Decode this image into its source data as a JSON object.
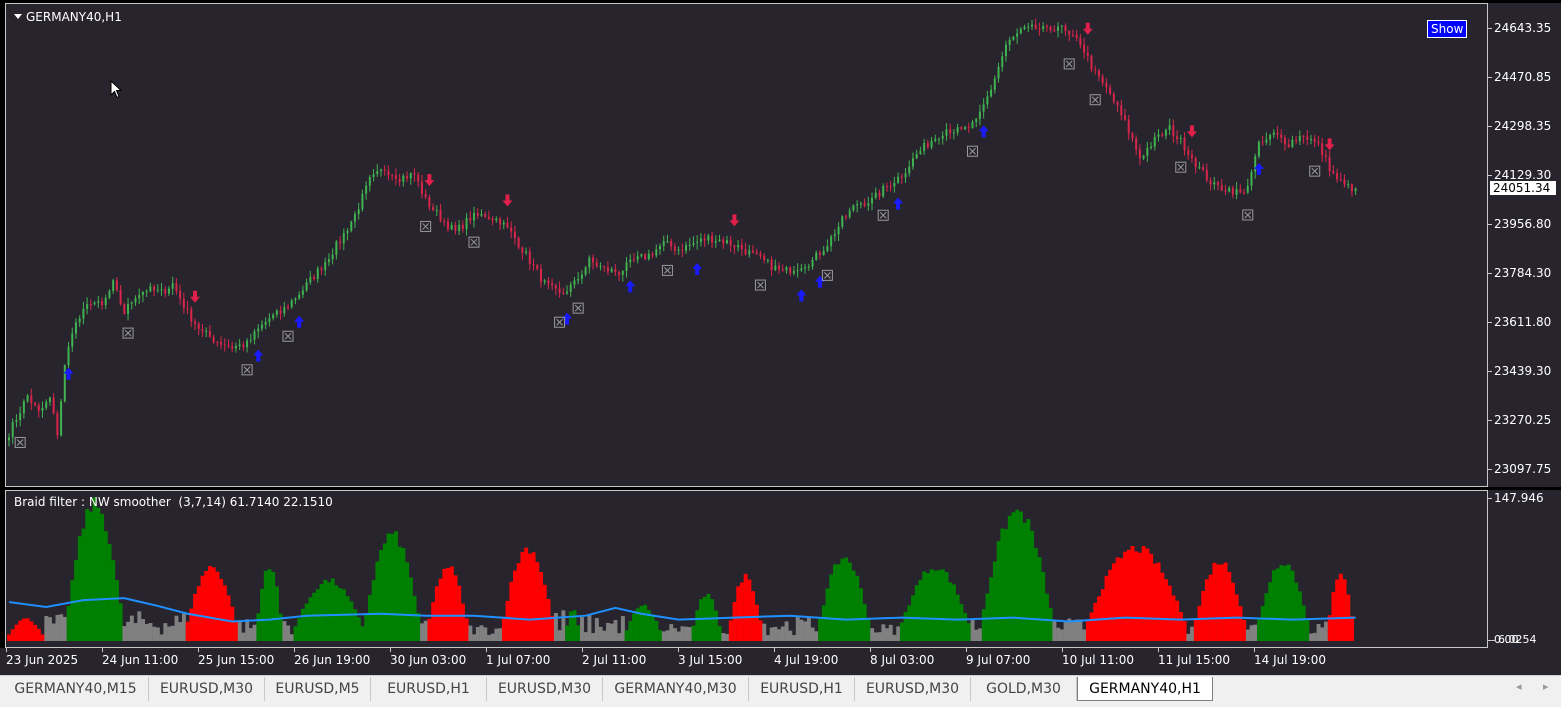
{
  "chart": {
    "symbol_title": "GERMANY40,H1",
    "show_button_label": "Show",
    "current_price": "24051.34",
    "price_ticks": [
      "24643.35",
      "24470.85",
      "24298.35",
      "24129.30",
      "23956.80",
      "23784.30",
      "23611.80",
      "23439.30",
      "23270.25",
      "23097.75"
    ],
    "time_ticks": [
      "23 Jun 2025",
      "24 Jun 11:00",
      "25 Jun 15:00",
      "26 Jun 19:00",
      "30 Jun 03:00",
      "1 Jul 07:00",
      "2 Jul 11:00",
      "3 Jul 15:00",
      "4 Jul 19:00",
      "8 Jul 03:00",
      "9 Jul 07:00",
      "10 Jul 11:00",
      "11 Jul 15:00",
      "14 Jul 19:00"
    ],
    "colors": {
      "background": "#28242e",
      "bull": "#3fb34f",
      "bear": "#d7264a",
      "buy_arrow": "#1a1aff",
      "sell_arrow": "#e0204a",
      "exit_marker": "#9a9a9a"
    }
  },
  "indicator": {
    "label": "Braid filter : NW smoother  (3,7,14) 61.7140 22.1510",
    "scale_max": "147.946",
    "scale_min": "0.00",
    "scale_mid": "6.0254",
    "colors": {
      "up": "#008000",
      "down": "#ff0000",
      "neutral": "#808080",
      "line": "#1e90ff"
    }
  },
  "chart_data": {
    "type": "candlestick",
    "title": "GERMANY40,H1",
    "ylim": [
      23030,
      24680
    ],
    "price_path": [
      [
        0,
        23200
      ],
      [
        5,
        23330
      ],
      [
        8,
        23270
      ],
      [
        11,
        23320
      ],
      [
        13,
        23200
      ],
      [
        15,
        23430
      ],
      [
        17,
        23560
      ],
      [
        22,
        23660
      ],
      [
        25,
        23640
      ],
      [
        28,
        23720
      ],
      [
        31,
        23620
      ],
      [
        34,
        23680
      ],
      [
        37,
        23700
      ],
      [
        41,
        23690
      ],
      [
        44,
        23720
      ],
      [
        48,
        23620
      ],
      [
        52,
        23550
      ],
      [
        56,
        23520
      ],
      [
        60,
        23500
      ],
      [
        64,
        23510
      ],
      [
        67,
        23560
      ],
      [
        70,
        23600
      ],
      [
        73,
        23620
      ],
      [
        76,
        23660
      ],
      [
        79,
        23700
      ],
      [
        84,
        23780
      ],
      [
        89,
        23870
      ],
      [
        93,
        23960
      ],
      [
        97,
        24080
      ],
      [
        101,
        24120
      ],
      [
        105,
        24090
      ],
      [
        109,
        24100
      ],
      [
        112,
        24010
      ],
      [
        116,
        23950
      ],
      [
        120,
        23900
      ],
      [
        124,
        23950
      ],
      [
        128,
        23960
      ],
      [
        132,
        23940
      ],
      [
        136,
        23880
      ],
      [
        140,
        23800
      ],
      [
        144,
        23720
      ],
      [
        148,
        23680
      ],
      [
        152,
        23720
      ],
      [
        156,
        23800
      ],
      [
        160,
        23770
      ],
      [
        164,
        23760
      ],
      [
        168,
        23800
      ],
      [
        172,
        23820
      ],
      [
        176,
        23860
      ],
      [
        180,
        23840
      ],
      [
        184,
        23860
      ],
      [
        188,
        23880
      ],
      [
        192,
        23870
      ],
      [
        196,
        23850
      ],
      [
        200,
        23820
      ],
      [
        204,
        23790
      ],
      [
        208,
        23760
      ],
      [
        212,
        23780
      ],
      [
        216,
        23800
      ],
      [
        220,
        23860
      ],
      [
        224,
        23940
      ],
      [
        228,
        24000
      ],
      [
        232,
        24010
      ],
      [
        236,
        24060
      ],
      [
        240,
        24100
      ],
      [
        244,
        24170
      ],
      [
        248,
        24220
      ],
      [
        252,
        24260
      ],
      [
        256,
        24250
      ],
      [
        260,
        24280
      ],
      [
        264,
        24400
      ],
      [
        268,
        24550
      ],
      [
        272,
        24600
      ],
      [
        276,
        24610
      ],
      [
        279,
        24600
      ],
      [
        282,
        24620
      ],
      [
        285,
        24580
      ],
      [
        288,
        24560
      ],
      [
        292,
        24450
      ],
      [
        296,
        24380
      ],
      [
        300,
        24280
      ],
      [
        304,
        24160
      ],
      [
        308,
        24220
      ],
      [
        312,
        24260
      ],
      [
        316,
        24200
      ],
      [
        320,
        24120
      ],
      [
        324,
        24060
      ],
      [
        328,
        24050
      ],
      [
        332,
        24030
      ],
      [
        336,
        24200
      ],
      [
        340,
        24240
      ],
      [
        344,
        24210
      ],
      [
        348,
        24240
      ],
      [
        352,
        24200
      ],
      [
        356,
        24100
      ],
      [
        359,
        24060
      ],
      [
        362,
        24051.34
      ]
    ],
    "buy_signals": [
      16,
      67,
      78,
      150,
      167,
      185,
      213,
      218,
      239,
      262,
      336
    ],
    "sell_signals": [
      50,
      113,
      134,
      195,
      290,
      318,
      355
    ],
    "exit_markers": [
      3,
      32,
      64,
      75,
      112,
      125,
      148,
      153,
      177,
      202,
      220,
      235,
      259,
      285,
      292,
      315,
      333,
      351
    ],
    "indicator_series": {
      "scale": [
        0,
        147.946
      ],
      "bars": [
        [
          "down",
          0,
          10,
          24
        ],
        [
          "neutral",
          10,
          16,
          22
        ],
        [
          "up",
          16,
          31,
          148
        ],
        [
          "neutral",
          31,
          48,
          25
        ],
        [
          "down",
          48,
          62,
          80
        ],
        [
          "neutral",
          62,
          67,
          18
        ],
        [
          "up",
          67,
          74,
          82
        ],
        [
          "neutral",
          74,
          77,
          20
        ],
        [
          "up",
          77,
          96,
          65
        ],
        [
          "up",
          96,
          111,
          115
        ],
        [
          "neutral",
          111,
          113,
          15
        ],
        [
          "down",
          113,
          124,
          80
        ],
        [
          "neutral",
          124,
          133,
          12
        ],
        [
          "down",
          133,
          147,
          100
        ],
        [
          "neutral",
          147,
          150,
          28
        ],
        [
          "up",
          150,
          154,
          34
        ],
        [
          "neutral",
          154,
          166,
          22
        ],
        [
          "up",
          166,
          176,
          38
        ],
        [
          "neutral",
          176,
          184,
          14
        ],
        [
          "up",
          184,
          192,
          50
        ],
        [
          "neutral",
          192,
          194,
          10
        ],
        [
          "down",
          194,
          203,
          70
        ],
        [
          "neutral",
          203,
          218,
          20
        ],
        [
          "up",
          218,
          232,
          90
        ],
        [
          "neutral",
          232,
          240,
          12
        ],
        [
          "up",
          240,
          259,
          80
        ],
        [
          "neutral",
          259,
          262,
          20
        ],
        [
          "up",
          262,
          281,
          140
        ],
        [
          "neutral",
          281,
          290,
          18
        ],
        [
          "down",
          290,
          317,
          100
        ],
        [
          "neutral",
          317,
          319,
          22
        ],
        [
          "down",
          319,
          333,
          86
        ],
        [
          "neutral",
          333,
          336,
          15
        ],
        [
          "up",
          336,
          350,
          86
        ],
        [
          "neutral",
          350,
          355,
          15
        ],
        [
          "down",
          355,
          362,
          75
        ]
      ],
      "line": [
        [
          0,
          40
        ],
        [
          10,
          35
        ],
        [
          20,
          42
        ],
        [
          31,
          44
        ],
        [
          40,
          36
        ],
        [
          48,
          28
        ],
        [
          60,
          20
        ],
        [
          70,
          22
        ],
        [
          80,
          26
        ],
        [
          100,
          28
        ],
        [
          112,
          26
        ],
        [
          125,
          26
        ],
        [
          140,
          22
        ],
        [
          155,
          26
        ],
        [
          163,
          34
        ],
        [
          170,
          28
        ],
        [
          180,
          22
        ],
        [
          195,
          24
        ],
        [
          210,
          26
        ],
        [
          225,
          22
        ],
        [
          240,
          24
        ],
        [
          255,
          22
        ],
        [
          270,
          24
        ],
        [
          285,
          20
        ],
        [
          300,
          24
        ],
        [
          315,
          22
        ],
        [
          330,
          24
        ],
        [
          345,
          22
        ],
        [
          362,
          24
        ]
      ]
    }
  },
  "tabs": {
    "items": [
      "GERMANY40,M15",
      "EURUSD,M30",
      "EURUSD,M5",
      "EURUSD,H1",
      "EURUSD,M30",
      "GERMANY40,M30",
      "EURUSD,H1",
      "EURUSD,M30",
      "GOLD,M30",
      "GERMANY40,H1"
    ],
    "active_index": 9,
    "scroll_left_icon": "◂",
    "scroll_right_icon": "▸"
  }
}
